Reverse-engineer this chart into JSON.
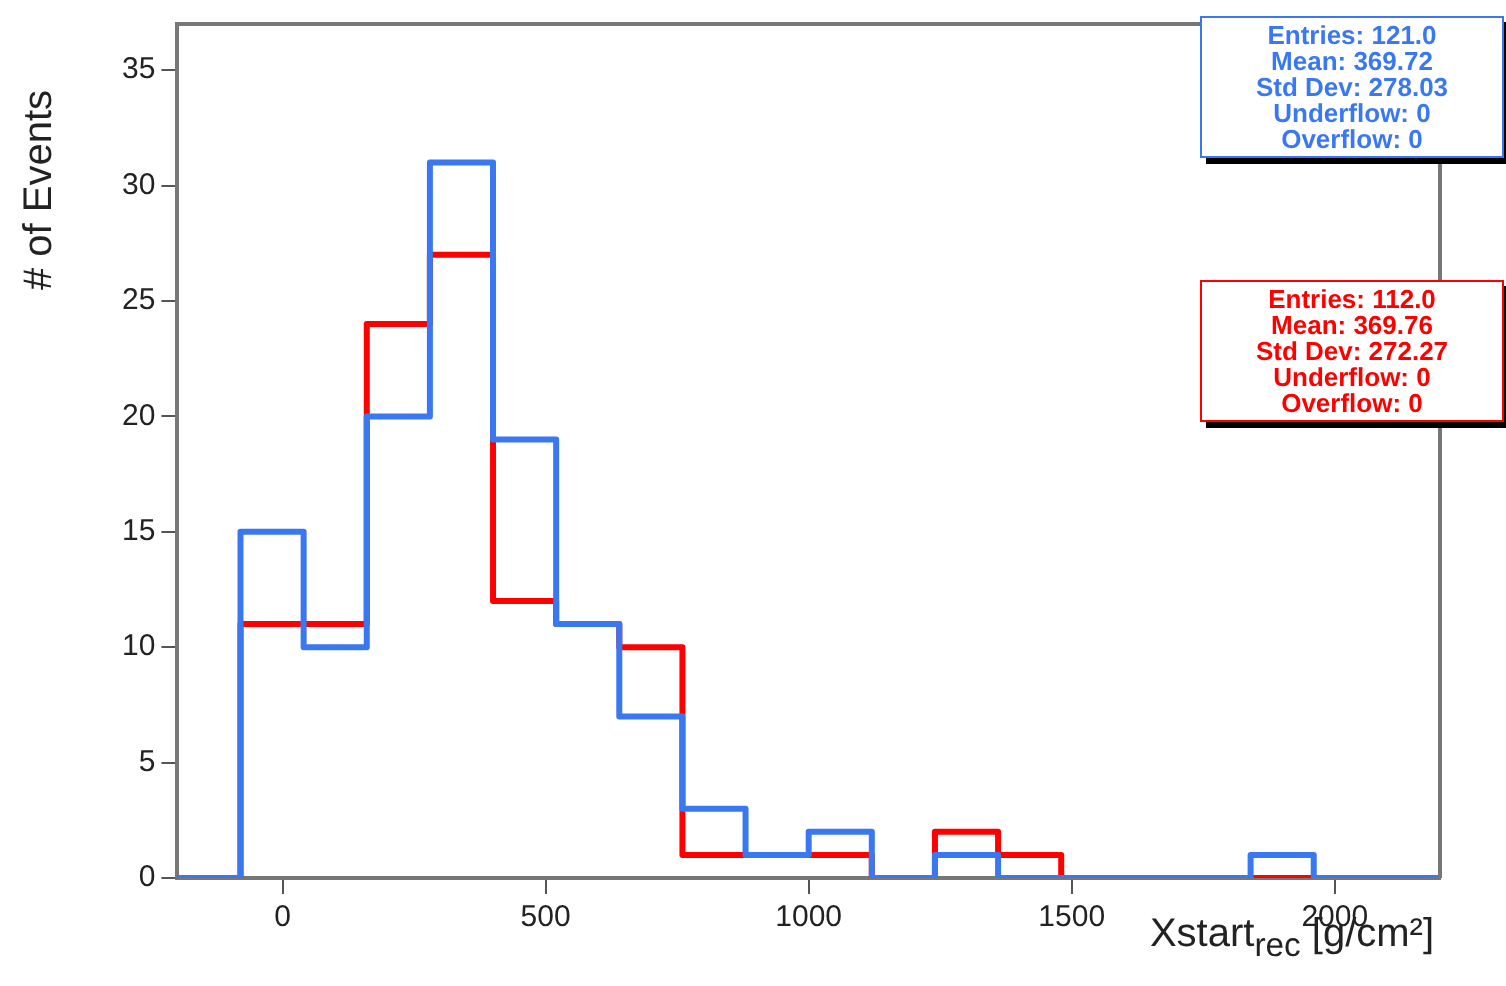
{
  "chart_data": {
    "type": "histogram",
    "xlabel": "Xstart$_{rec}$ [g/cm²]",
    "ylabel": "# of Events",
    "bins": [
      -200,
      -80,
      40,
      160,
      280,
      400,
      520,
      640,
      760,
      880,
      1000,
      1120,
      1240,
      1360,
      1480,
      1600,
      1720,
      1840,
      1960,
      2080,
      2200
    ],
    "series": [
      {
        "color": "#3a78f2",
        "values": [
          0,
          15,
          10,
          20,
          31,
          19,
          11,
          7,
          3,
          1,
          2,
          0,
          1,
          0,
          0,
          0,
          0,
          1,
          0,
          0
        ]
      },
      {
        "color": "#ff0000",
        "values": [
          0,
          11,
          11,
          24,
          27,
          12,
          11,
          10,
          1,
          1,
          1,
          0,
          2,
          1,
          0,
          0,
          0,
          0,
          0,
          0
        ]
      }
    ],
    "xlim": [
      -200,
      2200
    ],
    "xticks": [
      0,
      500,
      1000,
      1500,
      2000
    ],
    "ylim": [
      0,
      37
    ],
    "yticks": [
      0,
      5,
      10,
      15,
      20,
      25,
      30,
      35
    ],
    "grid": false,
    "legend": false,
    "annotations": [
      "Entries: 121.0",
      "Mean: 369.72",
      "Std Dev: 278.03",
      "Underflow: 0",
      "Overflow: 0",
      "Entries: 112.0",
      "Mean: 369.76",
      "Std Dev: 272.27",
      "Underflow: 0",
      "Overflow: 0"
    ]
  }
}
